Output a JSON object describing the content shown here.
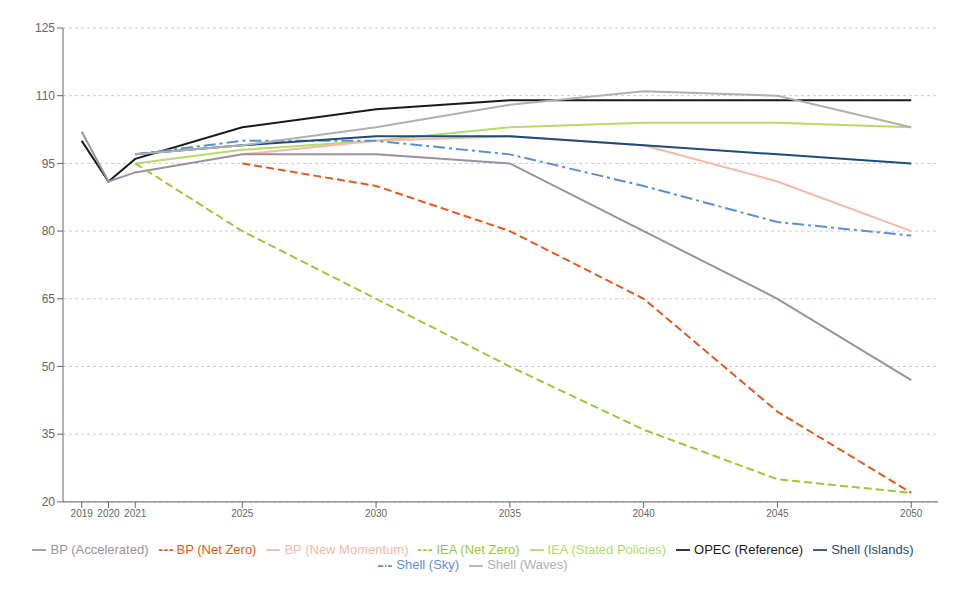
{
  "chart_data": {
    "type": "line",
    "x": [
      2019,
      2020,
      2021,
      2025,
      2030,
      2035,
      2040,
      2045,
      2050
    ],
    "xlim": [
      2018.3,
      2051.0
    ],
    "xticks": [
      2019,
      2020,
      2021,
      2025,
      2030,
      2035,
      2040,
      2045,
      2050
    ],
    "ylim": [
      20,
      125
    ],
    "yticks": [
      20,
      35,
      50,
      65,
      80,
      95,
      110,
      125
    ],
    "grid": "y",
    "legend": "bottom",
    "series": [
      {
        "name": "OPEC (Reference)",
        "color": "#1a1a1a",
        "line_style": "solid",
        "values": [
          100,
          91,
          96,
          103,
          107,
          109,
          109,
          109,
          109
        ]
      },
      {
        "name": "IEA (Stated Policies)",
        "color": "#b5d96b",
        "line_style": "solid",
        "values": [
          null,
          null,
          95,
          98,
          100,
          103,
          104,
          104,
          103
        ]
      },
      {
        "name": "BP (New Momentum)",
        "color": "#f4b8a8",
        "line_style": "solid",
        "values": [
          null,
          null,
          null,
          97,
          100,
          101,
          99,
          91,
          80
        ]
      },
      {
        "name": "BP (Accelerated)",
        "color": "#9e8fa0",
        "line_style": "solid",
        "values": [
          102,
          91,
          93,
          97,
          97,
          95,
          80,
          65,
          47
        ]
      },
      {
        "name": "IEA (Net Zero)",
        "color": "#9dc73a",
        "line_style": "dashed",
        "values": [
          null,
          null,
          95,
          80,
          65,
          50,
          36,
          25,
          22
        ]
      },
      {
        "name": "BP (Net Zero)",
        "color": "#e05a1e",
        "line_style": "dashed",
        "values": [
          null,
          null,
          null,
          95,
          90,
          80,
          65,
          40,
          22
        ]
      },
      {
        "name": "Shell (Sky)",
        "color": "#5b8fd4",
        "line_style": "dashdot",
        "values": [
          null,
          null,
          97,
          100,
          100,
          97,
          90,
          82,
          79
        ]
      },
      {
        "name": "Shell (Islands)",
        "color": "#1e4b7a",
        "line_style": "solid",
        "values": [
          null,
          null,
          97,
          99,
          101,
          101,
          99,
          97,
          95
        ]
      },
      {
        "name": "Shell (Waves)",
        "color": "#b0b0b0",
        "line_style": "solid",
        "values": [
          null,
          null,
          97,
          99,
          103,
          108,
          111,
          110,
          103
        ]
      }
    ]
  }
}
